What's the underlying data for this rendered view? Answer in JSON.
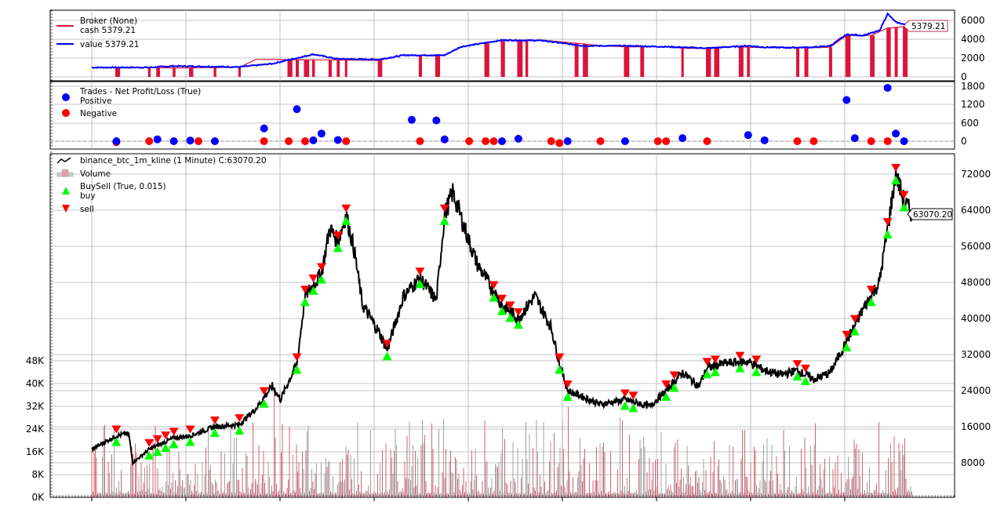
{
  "colors": {
    "cash": "#dc143c",
    "value": "#0000ff",
    "positive": "#0000ff",
    "negative": "#ff0000",
    "price": "#000000",
    "buy": "#00ff00",
    "sell": "#ff0000",
    "volume_up": "#a0a0a0",
    "volume_down": "#cc6677",
    "grid": "#b0b0b0"
  },
  "broker_panel": {
    "legend_title": "Broker (None)",
    "cash_label": "cash 5379.21",
    "value_label": "value 5379.21",
    "last_value_tag": "5379.21",
    "y_ticks": [
      "6000",
      "4000",
      "2000",
      "0"
    ]
  },
  "trades_panel": {
    "legend_title": "Trades - Net Profit/Loss (True)",
    "positive_label": "Positive",
    "negative_label": "Negative",
    "y_ticks": [
      "1800",
      "1200",
      "600",
      "0"
    ]
  },
  "price_panel": {
    "legend_data": "binance_btc_1m_kline (1 Minute) C:63070.20",
    "legend_volume": "Volume",
    "legend_buysell": "BuySell (True, 0.015)",
    "legend_buy": "buy",
    "legend_sell": "sell",
    "last_close_tag": "63070.20",
    "y_ticks_right": [
      "72000",
      "64000",
      "56000",
      "48000",
      "40000",
      "32000",
      "24000",
      "16000",
      "8000"
    ],
    "y_ticks_left": [
      "48K",
      "40K",
      "32K",
      "24K",
      "16K",
      "8K",
      "0K"
    ]
  },
  "chart_data": [
    {
      "type": "line",
      "title": "Broker (None)",
      "series": [
        {
          "name": "cash",
          "final": 5379.21,
          "x": [
            0,
            0.05,
            0.07,
            0.1,
            0.18,
            0.2,
            0.3,
            0.35,
            0.38,
            0.43,
            0.45,
            0.5,
            0.55,
            0.6,
            0.62,
            0.65,
            0.7,
            0.72,
            0.75,
            0.78,
            0.82,
            0.85,
            0.88,
            0.9,
            0.92,
            0.95,
            0.97,
            1.0
          ],
          "values": [
            1000,
            1000,
            1000,
            950,
            1020,
            1850,
            1800,
            1750,
            2300,
            2300,
            3200,
            3900,
            3900,
            3500,
            3300,
            3200,
            3200,
            3050,
            3000,
            3200,
            3100,
            3150,
            3100,
            3150,
            4400,
            4400,
            5200,
            5379.21
          ]
        },
        {
          "name": "value",
          "final": 5379.21,
          "x": [
            0,
            0.07,
            0.1,
            0.18,
            0.22,
            0.27,
            0.3,
            0.35,
            0.38,
            0.43,
            0.45,
            0.5,
            0.55,
            0.58,
            0.6,
            0.65,
            0.7,
            0.75,
            0.8,
            0.82,
            0.85,
            0.88,
            0.9,
            0.92,
            0.94,
            0.96,
            0.97,
            0.98,
            1.0
          ],
          "values": [
            1000,
            1000,
            1150,
            1050,
            1400,
            2400,
            1900,
            1850,
            2300,
            2300,
            3200,
            3900,
            3850,
            3500,
            3300,
            3300,
            3200,
            3050,
            3300,
            3150,
            3100,
            3150,
            3300,
            4500,
            4400,
            4900,
            6700,
            5800,
            5379.21
          ]
        }
      ],
      "ylim": [
        0,
        6800
      ],
      "y_ticks": [
        0,
        2000,
        4000,
        6000
      ],
      "legend_position": "upper left",
      "grid": true
    },
    {
      "type": "scatter",
      "title": "Trades - Net Profit/Loss (True)",
      "series": [
        {
          "name": "Positive",
          "points": [
            [
              0.03,
              0
            ],
            [
              0.08,
              60
            ],
            [
              0.1,
              0
            ],
            [
              0.12,
              20
            ],
            [
              0.15,
              0
            ],
            [
              0.21,
              420
            ],
            [
              0.25,
              1050
            ],
            [
              0.27,
              30
            ],
            [
              0.28,
              250
            ],
            [
              0.3,
              40
            ],
            [
              0.39,
              700
            ],
            [
              0.42,
              680
            ],
            [
              0.43,
              60
            ],
            [
              0.5,
              0
            ],
            [
              0.52,
              80
            ],
            [
              0.58,
              0
            ],
            [
              0.65,
              0
            ],
            [
              0.72,
              100
            ],
            [
              0.8,
              200
            ],
            [
              0.82,
              30
            ],
            [
              0.92,
              1350
            ],
            [
              0.93,
              100
            ],
            [
              0.97,
              1750
            ],
            [
              0.98,
              250
            ],
            [
              0.99,
              0
            ]
          ]
        },
        {
          "name": "Negative",
          "points": [
            [
              0.03,
              -30
            ],
            [
              0.07,
              0
            ],
            [
              0.13,
              0
            ],
            [
              0.21,
              0
            ],
            [
              0.24,
              0
            ],
            [
              0.26,
              0
            ],
            [
              0.31,
              0
            ],
            [
              0.4,
              0
            ],
            [
              0.46,
              0
            ],
            [
              0.48,
              0
            ],
            [
              0.49,
              0
            ],
            [
              0.56,
              0
            ],
            [
              0.57,
              -60
            ],
            [
              0.62,
              0
            ],
            [
              0.69,
              0
            ],
            [
              0.7,
              0
            ],
            [
              0.75,
              0
            ],
            [
              0.86,
              0
            ],
            [
              0.88,
              0
            ],
            [
              0.95,
              0
            ],
            [
              0.97,
              0
            ]
          ]
        }
      ],
      "ylim": [
        -250,
        1900
      ],
      "y_ticks": [
        0,
        600,
        1200,
        1800
      ],
      "legend_position": "upper left",
      "grid": true
    },
    {
      "type": "line",
      "title": "binance_btc_1m_kline (1 Minute) C:63070.20",
      "series": [
        {
          "name": "close",
          "final": 63070.2,
          "x": [
            0,
            0.03,
            0.045,
            0.05,
            0.07,
            0.1,
            0.12,
            0.15,
            0.18,
            0.2,
            0.22,
            0.23,
            0.25,
            0.26,
            0.28,
            0.29,
            0.3,
            0.31,
            0.32,
            0.33,
            0.35,
            0.36,
            0.38,
            0.4,
            0.42,
            0.43,
            0.44,
            0.46,
            0.47,
            0.5,
            0.52,
            0.54,
            0.56,
            0.57,
            0.58,
            0.62,
            0.65,
            0.68,
            0.7,
            0.72,
            0.74,
            0.75,
            0.77,
            0.8,
            0.82,
            0.84,
            0.86,
            0.88,
            0.9,
            0.92,
            0.94,
            0.95,
            0.96,
            0.97,
            0.98,
            0.99,
            1.0
          ],
          "values": [
            11000,
            14000,
            14500,
            8000,
            11000,
            13500,
            14000,
            16000,
            16500,
            20000,
            25000,
            22000,
            30000,
            45000,
            50000,
            60000,
            57000,
            63000,
            55000,
            43000,
            37000,
            33000,
            45000,
            49000,
            44000,
            63000,
            68000,
            57000,
            52000,
            43000,
            40000,
            45000,
            38000,
            30000,
            24000,
            21000,
            22000,
            20500,
            24000,
            28000,
            25000,
            29000,
            30000,
            30500,
            28500,
            27500,
            28500,
            26500,
            28000,
            35000,
            42000,
            45000,
            48000,
            60000,
            72000,
            66000,
            63070.2
          ]
        },
        {
          "name": "Volume",
          "note": "dense volume bars, mostly 1K-8K, spikes to ~16K"
        }
      ],
      "markers": {
        "buy_triangle_up_green": "many, below price at entry points",
        "sell_triangle_down_red": "many, above price at exit points"
      },
      "ylim": [
        0,
        76000
      ],
      "y_ticks_right": [
        8000,
        16000,
        24000,
        32000,
        40000,
        48000,
        56000,
        64000,
        72000
      ],
      "y_ticks_left_volume": [
        "0K",
        "8K",
        "16K",
        "24K",
        "32K",
        "40K",
        "48K"
      ],
      "legend_position": "upper left",
      "grid": true
    }
  ]
}
